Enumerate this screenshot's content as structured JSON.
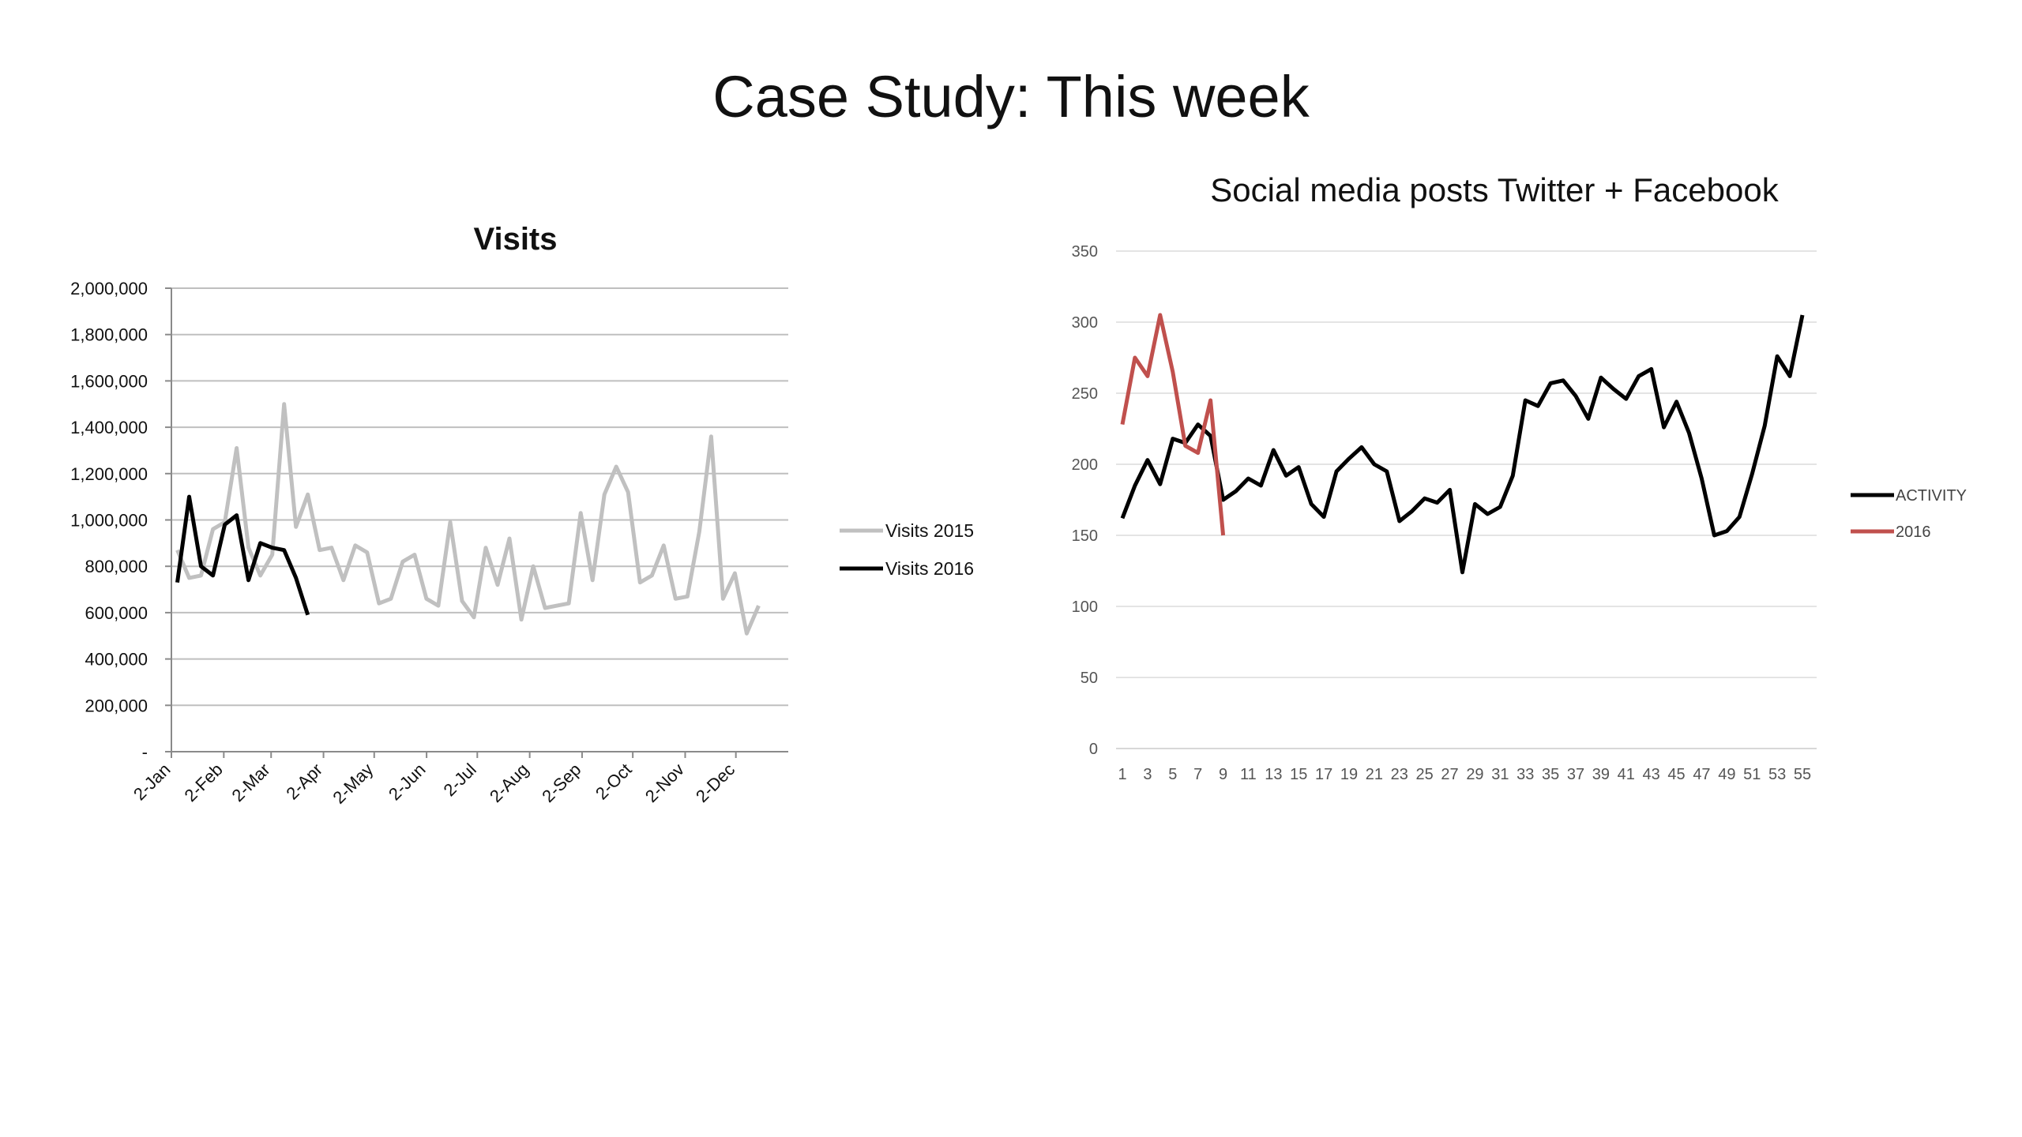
{
  "slide": {
    "title": "Case Study: This week"
  },
  "chart_data": [
    {
      "type": "line",
      "title": "Visits",
      "xlabel": "",
      "ylabel": "",
      "ylim": [
        0,
        2000000
      ],
      "y_ticks": [
        0,
        200000,
        400000,
        600000,
        800000,
        1000000,
        1200000,
        1400000,
        1600000,
        1800000,
        2000000
      ],
      "y_tick_labels": [
        "-",
        "200,000",
        "400,000",
        "600,000",
        "800,000",
        "1,000,000",
        "1,200,000",
        "1,400,000",
        "1,600,000",
        "1,800,000",
        "2,000,000"
      ],
      "x_tick_labels": [
        "2-Jan",
        "2-Feb",
        "2-Mar",
        "2-Apr",
        "2-May",
        "2-Jun",
        "2-Jul",
        "2-Aug",
        "2-Sep",
        "2-Oct",
        "2-Nov",
        "2-Dec"
      ],
      "x_period_count": 52,
      "grid": true,
      "legend_position": "right",
      "series": [
        {
          "name": "Visits 2015",
          "color": "#c0c0c0",
          "values": [
            870000,
            750000,
            760000,
            960000,
            990000,
            1310000,
            880000,
            760000,
            850000,
            1500000,
            970000,
            1110000,
            870000,
            880000,
            740000,
            890000,
            860000,
            640000,
            660000,
            820000,
            850000,
            660000,
            630000,
            990000,
            650000,
            580000,
            880000,
            720000,
            920000,
            570000,
            800000,
            620000,
            630000,
            640000,
            1030000,
            740000,
            1110000,
            1230000,
            1120000,
            730000,
            760000,
            890000,
            660000,
            670000,
            950000,
            1360000,
            660000,
            770000,
            510000,
            630000
          ]
        },
        {
          "name": "Visits 2016",
          "color": "#000000",
          "values": [
            730000,
            1100000,
            800000,
            760000,
            980000,
            1020000,
            740000,
            900000,
            880000,
            870000,
            750000,
            590000
          ]
        }
      ]
    },
    {
      "type": "line",
      "title": "Social media posts Twitter + Facebook",
      "xlabel": "",
      "ylabel": "",
      "ylim": [
        0,
        350
      ],
      "y_ticks": [
        0,
        50,
        100,
        150,
        200,
        250,
        300,
        350
      ],
      "x_tick_labels": [
        1,
        3,
        5,
        7,
        9,
        11,
        13,
        15,
        17,
        19,
        21,
        23,
        25,
        27,
        29,
        31,
        33,
        35,
        37,
        39,
        41,
        43,
        45,
        47,
        49,
        51,
        53,
        55
      ],
      "x_range": [
        1,
        55
      ],
      "grid": true,
      "legend_position": "right",
      "series": [
        {
          "name": "ACTIVITY",
          "color": "#000000",
          "values": [
            162,
            185,
            203,
            186,
            218,
            215,
            228,
            220,
            175,
            181,
            190,
            185,
            210,
            192,
            198,
            172,
            163,
            195,
            204,
            212,
            200,
            195,
            160,
            167,
            176,
            173,
            182,
            124,
            172,
            165,
            170,
            192,
            245,
            241,
            257,
            259,
            248,
            232,
            261,
            253,
            246,
            262,
            267,
            226,
            244,
            222,
            190,
            150,
            153,
            163,
            193,
            227,
            276,
            262,
            305
          ]
        },
        {
          "name": "2016",
          "color": "#c0504d",
          "values": [
            228,
            275,
            262,
            305,
            265,
            213,
            208,
            245,
            150
          ]
        }
      ]
    }
  ]
}
